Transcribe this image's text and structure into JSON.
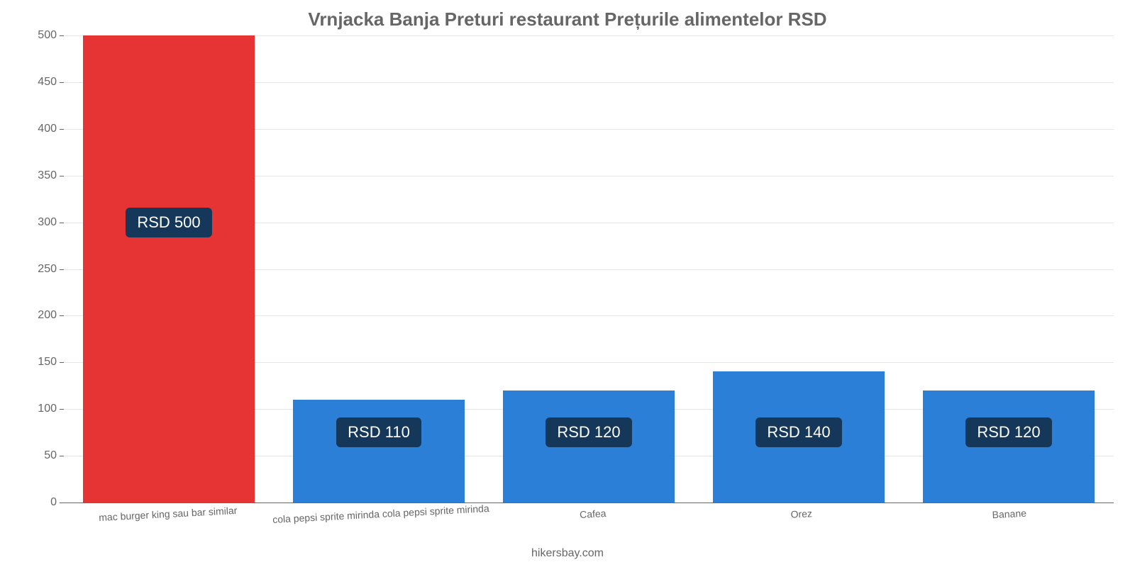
{
  "chart": {
    "type": "bar",
    "title": "Vrnjacka Banja Preturi restaurant Prețurile alimentelor RSD",
    "title_color": "#666666",
    "title_fontsize": 26,
    "background_color": "#ffffff",
    "grid_color": "#e6e6e6",
    "axis_color": "#666666",
    "ylim": [
      0,
      500
    ],
    "ytick_step": 50,
    "yticks": [
      0,
      50,
      100,
      150,
      200,
      250,
      300,
      350,
      400,
      450,
      500
    ],
    "bar_width": 0.82,
    "categories": [
      "mac burger king sau bar similar",
      "cola pepsi sprite mirinda cola pepsi sprite mirinda",
      "Cafea",
      "Orez",
      "Banane"
    ],
    "values": [
      500,
      110,
      120,
      140,
      120
    ],
    "value_labels": [
      "RSD 500",
      "RSD 110",
      "RSD 120",
      "RSD 140",
      "RSD 120"
    ],
    "bar_colors": [
      "#e63333",
      "#2b7fd6",
      "#2b7fd6",
      "#2b7fd6",
      "#2b7fd6"
    ],
    "value_label_bg": "#14375a",
    "value_label_color": "#ffffff",
    "value_label_fontsize": 22,
    "label_y_from_top_pct": [
      40,
      85,
      85,
      85,
      85
    ],
    "xlabel_fontsize": 14,
    "xlabel_color": "#666666",
    "ytick_fontsize": 16,
    "footer": "hikersbay.com",
    "footer_color": "#666666",
    "footer_fontsize": 16
  }
}
